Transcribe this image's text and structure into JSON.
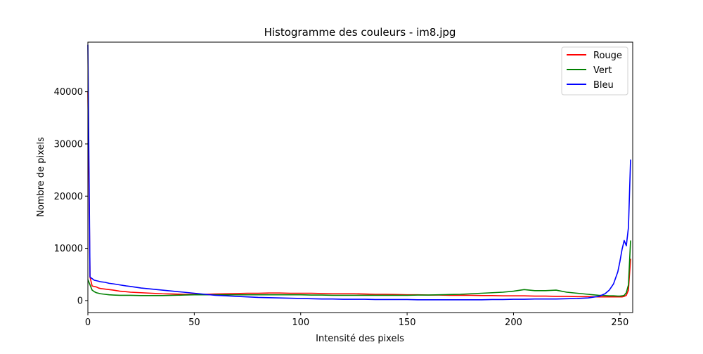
{
  "chart_data": {
    "type": "line",
    "title": "Histogramme des couleurs - im8.jpg",
    "xlabel": "Intensité des pixels",
    "ylabel": "Nombre de pixels",
    "xlim": [
      0,
      256
    ],
    "ylim": [
      -2300,
      49500
    ],
    "xticks": [
      0,
      50,
      100,
      150,
      200,
      250
    ],
    "yticks": [
      0,
      10000,
      20000,
      30000,
      40000
    ],
    "grid": false,
    "legend": "top-right",
    "x": [
      0,
      1,
      2,
      3,
      4,
      5,
      6,
      8,
      10,
      12,
      15,
      18,
      20,
      25,
      30,
      35,
      40,
      45,
      50,
      55,
      60,
      65,
      70,
      75,
      80,
      85,
      90,
      95,
      100,
      105,
      110,
      115,
      120,
      125,
      130,
      135,
      140,
      145,
      150,
      155,
      160,
      165,
      170,
      175,
      180,
      185,
      190,
      195,
      200,
      205,
      210,
      215,
      220,
      225,
      230,
      235,
      240,
      243,
      245,
      247,
      249,
      250,
      251,
      252,
      253,
      254,
      255
    ],
    "series": [
      {
        "name": "Rouge",
        "color": "#ff0000",
        "values": [
          40000,
          4500,
          2800,
          2700,
          2600,
          2400,
          2300,
          2200,
          2100,
          2000,
          1800,
          1700,
          1600,
          1500,
          1400,
          1300,
          1250,
          1200,
          1200,
          1200,
          1250,
          1300,
          1350,
          1400,
          1400,
          1450,
          1450,
          1400,
          1400,
          1400,
          1350,
          1300,
          1300,
          1300,
          1250,
          1200,
          1200,
          1150,
          1100,
          1100,
          1050,
          1050,
          1000,
          1000,
          1000,
          950,
          950,
          900,
          900,
          900,
          850,
          850,
          800,
          800,
          750,
          750,
          700,
          700,
          700,
          700,
          700,
          700,
          700,
          800,
          1000,
          2000,
          8000
        ]
      },
      {
        "name": "Vert",
        "color": "#008000",
        "values": [
          4000,
          3000,
          2000,
          1700,
          1500,
          1400,
          1300,
          1200,
          1100,
          1050,
          1000,
          1000,
          1000,
          950,
          950,
          950,
          1000,
          1050,
          1100,
          1100,
          1100,
          1100,
          1100,
          1100,
          1100,
          1100,
          1100,
          1100,
          1100,
          1050,
          1050,
          1000,
          1000,
          1000,
          1000,
          1000,
          1000,
          1000,
          1000,
          1050,
          1050,
          1100,
          1150,
          1200,
          1300,
          1400,
          1500,
          1600,
          1800,
          2100,
          1900,
          1900,
          2000,
          1600,
          1400,
          1200,
          1000,
          950,
          900,
          900,
          850,
          850,
          900,
          1000,
          1500,
          3000,
          11500
        ]
      },
      {
        "name": "Bleu",
        "color": "#0000ff",
        "values": [
          49000,
          4500,
          4200,
          3900,
          3800,
          3700,
          3600,
          3500,
          3300,
          3200,
          3000,
          2800,
          2700,
          2400,
          2200,
          2000,
          1800,
          1600,
          1400,
          1200,
          1000,
          900,
          800,
          700,
          600,
          550,
          500,
          450,
          400,
          350,
          300,
          300,
          250,
          250,
          250,
          200,
          200,
          200,
          200,
          150,
          150,
          150,
          150,
          150,
          150,
          150,
          200,
          200,
          250,
          250,
          300,
          300,
          300,
          350,
          400,
          500,
          800,
          1300,
          2000,
          3200,
          5500,
          7500,
          9800,
          11500,
          10500,
          14000,
          27000
        ]
      }
    ]
  }
}
